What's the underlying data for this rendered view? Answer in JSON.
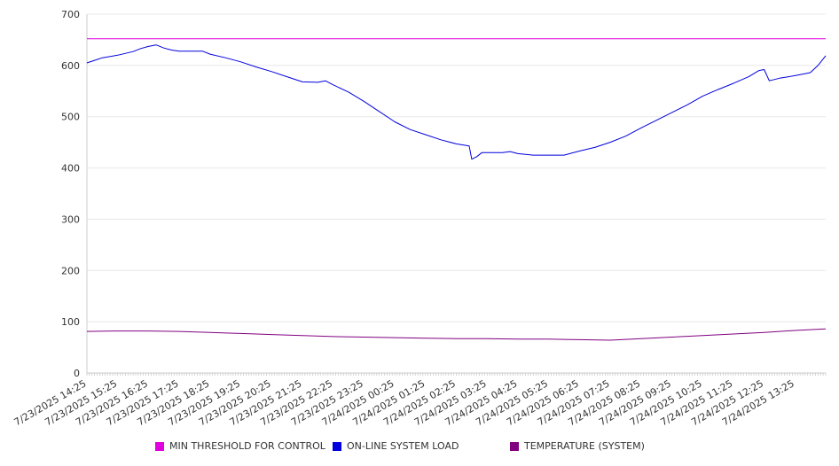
{
  "chart_data": {
    "type": "line",
    "title": "",
    "xlabel": "",
    "ylabel": "",
    "ylim": [
      0,
      700
    ],
    "y_ticks": [
      0,
      100,
      200,
      300,
      400,
      500,
      600,
      700
    ],
    "x_tick_labels": [
      "7/23/2025 14:25",
      "7/23/2025 15:25",
      "7/23/2025 16:25",
      "7/23/2025 17:25",
      "7/23/2025 18:25",
      "7/23/2025 19:25",
      "7/23/2025 20:25",
      "7/23/2025 21:25",
      "7/23/2025 22:25",
      "7/23/2025 23:25",
      "7/24/2025 00:25",
      "7/24/2025 01:25",
      "7/24/2025 02:25",
      "7/24/2025 03:25",
      "7/24/2025 04:25",
      "7/24/2025 05:25",
      "7/24/2025 06:25",
      "7/24/2025 07:25",
      "7/24/2025 08:25",
      "7/24/2025 09:25",
      "7/24/2025 10:25",
      "7/24/2025 11:25",
      "7/24/2025 12:25",
      "7/24/2025 13:25"
    ],
    "grid": true,
    "legend_position": "bottom",
    "series": [
      {
        "name": "MIN THRESHOLD FOR CONTROL",
        "color": "#e000e0",
        "points": [
          [
            "7/23/2025 14:25",
            652
          ],
          [
            "7/24/2025 14:25",
            652
          ]
        ]
      },
      {
        "name": "ON-LINE SYSTEM LOAD",
        "color": "#0000dd",
        "points": [
          [
            "7/23/2025 14:25",
            605
          ],
          [
            "7/23/2025 14:40",
            610
          ],
          [
            "7/23/2025 14:55",
            615
          ],
          [
            "7/23/2025 15:25",
            620
          ],
          [
            "7/23/2025 15:55",
            627
          ],
          [
            "7/23/2025 16:10",
            633
          ],
          [
            "7/23/2025 16:25",
            637
          ],
          [
            "7/23/2025 16:40",
            640
          ],
          [
            "7/23/2025 16:55",
            634
          ],
          [
            "7/23/2025 17:10",
            630
          ],
          [
            "7/23/2025 17:25",
            628
          ],
          [
            "7/23/2025 17:55",
            628
          ],
          [
            "7/23/2025 18:10",
            628
          ],
          [
            "7/23/2025 18:25",
            622
          ],
          [
            "7/23/2025 18:55",
            615
          ],
          [
            "7/23/2025 19:25",
            607
          ],
          [
            "7/23/2025 19:55",
            597
          ],
          [
            "7/23/2025 20:25",
            588
          ],
          [
            "7/23/2025 20:55",
            578
          ],
          [
            "7/23/2025 21:25",
            568
          ],
          [
            "7/23/2025 21:55",
            567
          ],
          [
            "7/23/2025 22:10",
            570
          ],
          [
            "7/23/2025 22:25",
            562
          ],
          [
            "7/23/2025 22:55",
            548
          ],
          [
            "7/23/2025 23:25",
            530
          ],
          [
            "7/23/2025 23:55",
            510
          ],
          [
            "7/24/2025 00:25",
            490
          ],
          [
            "7/24/2025 00:55",
            475
          ],
          [
            "7/24/2025 01:25",
            465
          ],
          [
            "7/24/2025 01:55",
            455
          ],
          [
            "7/24/2025 02:25",
            447
          ],
          [
            "7/24/2025 02:50",
            443
          ],
          [
            "7/24/2025 02:55",
            417
          ],
          [
            "7/24/2025 03:05",
            422
          ],
          [
            "7/24/2025 03:15",
            430
          ],
          [
            "7/24/2025 03:25",
            430
          ],
          [
            "7/24/2025 03:55",
            430
          ],
          [
            "7/24/2025 04:10",
            432
          ],
          [
            "7/24/2025 04:25",
            428
          ],
          [
            "7/24/2025 04:55",
            425
          ],
          [
            "7/24/2025 05:25",
            425
          ],
          [
            "7/24/2025 05:55",
            425
          ],
          [
            "7/24/2025 06:25",
            433
          ],
          [
            "7/24/2025 06:55",
            440
          ],
          [
            "7/24/2025 07:25",
            450
          ],
          [
            "7/24/2025 07:55",
            462
          ],
          [
            "7/24/2025 08:25",
            478
          ],
          [
            "7/24/2025 08:55",
            493
          ],
          [
            "7/24/2025 09:25",
            508
          ],
          [
            "7/24/2025 09:55",
            523
          ],
          [
            "7/24/2025 10:25",
            540
          ],
          [
            "7/24/2025 10:55",
            553
          ],
          [
            "7/24/2025 11:25",
            565
          ],
          [
            "7/24/2025 11:55",
            578
          ],
          [
            "7/24/2025 12:15",
            590
          ],
          [
            "7/24/2025 12:25",
            592
          ],
          [
            "7/24/2025 12:35",
            570
          ],
          [
            "7/24/2025 12:55",
            575
          ],
          [
            "7/24/2025 13:25",
            580
          ],
          [
            "7/24/2025 13:55",
            586
          ],
          [
            "7/24/2025 14:10",
            600
          ],
          [
            "7/24/2025 14:25",
            619
          ]
        ]
      },
      {
        "name": "TEMPERATURE (SYSTEM)",
        "color": "#800080",
        "points": [
          [
            "7/23/2025 14:25",
            81
          ],
          [
            "7/23/2025 15:25",
            82
          ],
          [
            "7/23/2025 16:25",
            82
          ],
          [
            "7/23/2025 17:25",
            81
          ],
          [
            "7/23/2025 18:25",
            79
          ],
          [
            "7/23/2025 19:25",
            77
          ],
          [
            "7/23/2025 20:25",
            75
          ],
          [
            "7/23/2025 21:25",
            73
          ],
          [
            "7/23/2025 22:25",
            71
          ],
          [
            "7/23/2025 23:25",
            70
          ],
          [
            "7/24/2025 00:25",
            69
          ],
          [
            "7/24/2025 01:25",
            68
          ],
          [
            "7/24/2025 02:25",
            67
          ],
          [
            "7/24/2025 03:25",
            67
          ],
          [
            "7/24/2025 04:25",
            66
          ],
          [
            "7/24/2025 05:25",
            66
          ],
          [
            "7/24/2025 06:25",
            65
          ],
          [
            "7/24/2025 07:25",
            64
          ],
          [
            "7/24/2025 08:25",
            67
          ],
          [
            "7/24/2025 09:25",
            70
          ],
          [
            "7/24/2025 10:25",
            73
          ],
          [
            "7/24/2025 11:25",
            76
          ],
          [
            "7/24/2025 12:25",
            79
          ],
          [
            "7/24/2025 13:25",
            83
          ],
          [
            "7/24/2025 14:25",
            86
          ]
        ]
      }
    ]
  }
}
